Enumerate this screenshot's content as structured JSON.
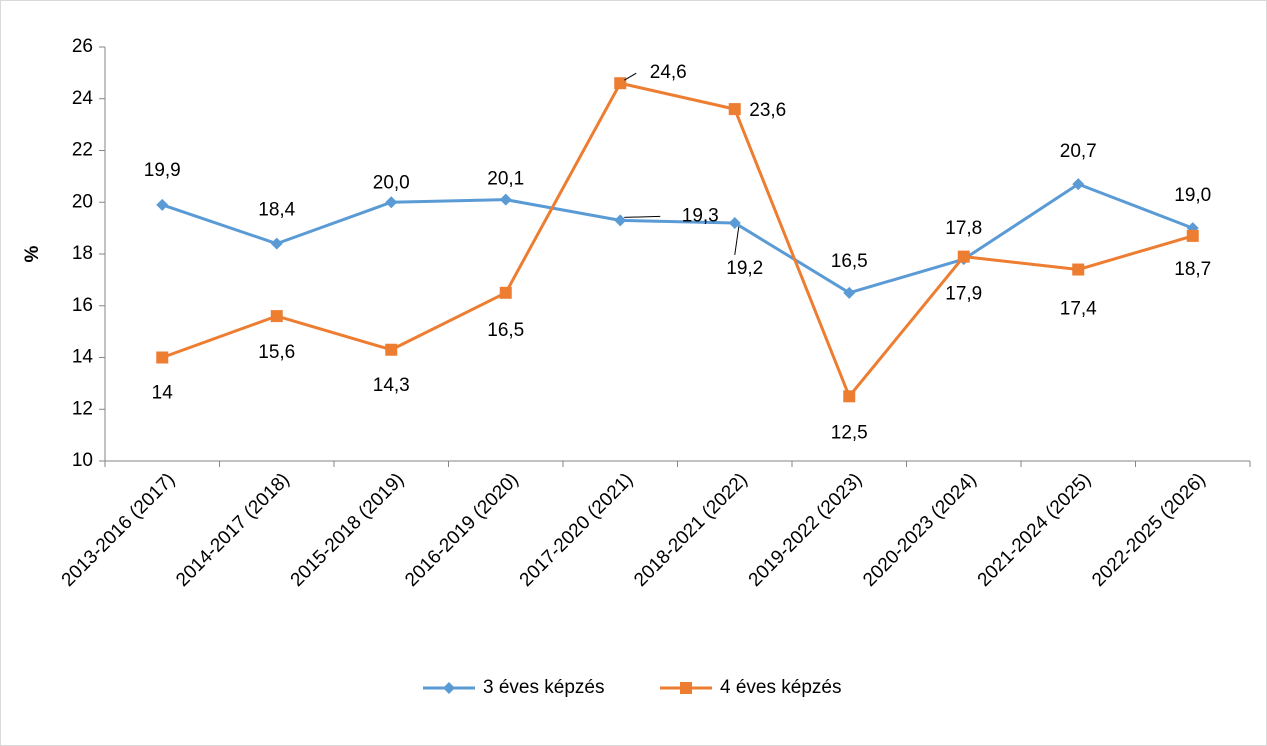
{
  "chart_data": {
    "type": "line",
    "y_label": "%",
    "categories": [
      "2013-2016 (2017)",
      "2014-2017 (2018)",
      "2015-2018 (2019)",
      "2016-2019 (2020)",
      "2017-2020 (2021)",
      "2018-2021 (2022)",
      "2019-2022 (2023)",
      "2020-2023 (2024)",
      "2021-2024 (2025)",
      "2022-2025 (2026)"
    ],
    "series": [
      {
        "name": "3 éves képzés",
        "color": "#5b9bd5",
        "marker": "diamond",
        "values": [
          19.9,
          18.4,
          20.0,
          20.1,
          19.3,
          19.2,
          16.5,
          17.8,
          20.7,
          19.0
        ],
        "value_labels": [
          "19,9",
          "18,4",
          "20,0",
          "20,1",
          "19,3",
          "19,2",
          "16,5",
          "17,8",
          "20,7",
          "19,0"
        ]
      },
      {
        "name": "4 éves képzés",
        "color": "#ed7d31",
        "marker": "square",
        "values": [
          14,
          15.6,
          14.3,
          16.5,
          24.6,
          23.6,
          12.5,
          17.9,
          17.4,
          18.7
        ],
        "value_labels": [
          "14",
          "15,6",
          "14,3",
          "16,5",
          "24,6",
          "23,6",
          "12,5",
          "17,9",
          "17,4",
          "18,7"
        ]
      }
    ],
    "ylim": [
      10,
      26
    ],
    "yticks": [
      10,
      12,
      14,
      16,
      18,
      20,
      22,
      24,
      26
    ],
    "grid": false,
    "legend": "bottom"
  }
}
